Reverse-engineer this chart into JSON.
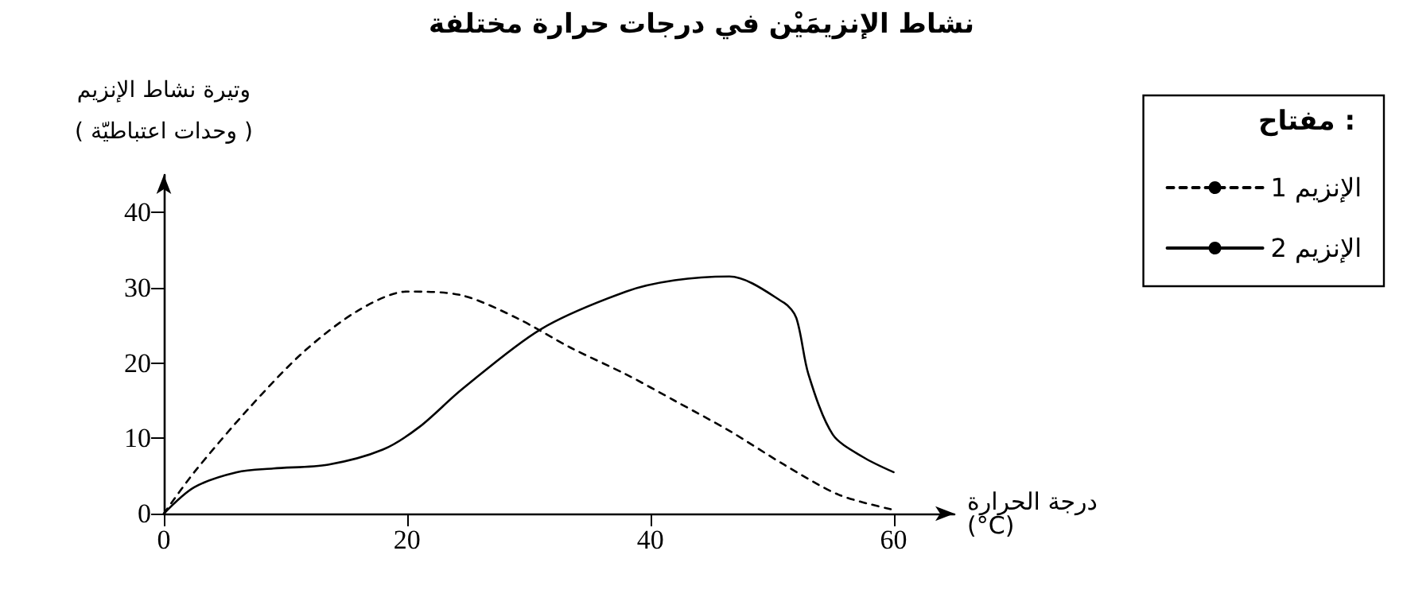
{
  "chart_data": {
    "type": "line",
    "title": "نشاط الإنزيمَيْن في درجات حرارة مختلفة",
    "xlabel": "درجة الحرارة\n(°C)",
    "ylabel": "وتيرة نشاط الإنزيم\n( وحدات اعتباطيّة )",
    "legend_title": "مفتاح :",
    "legend": "top right",
    "marker": "none",
    "grid": false,
    "xlim": [
      0,
      65
    ],
    "xticks": [
      0,
      20,
      40,
      60
    ],
    "ylim": [
      0,
      45
    ],
    "yticks": [
      0,
      10,
      20,
      30,
      40
    ],
    "series": [
      {
        "name": "الإنزيم 1",
        "color": "#000000",
        "line_style": "dashed",
        "x": [
          0,
          2.5,
          7,
          11.5,
          16,
          20,
          24.5,
          29,
          33.5,
          38,
          42,
          46.5,
          51,
          55.5,
          60
        ],
        "values": [
          0,
          5.5,
          14,
          21.5,
          27,
          29.5,
          29,
          26,
          22,
          18.5,
          15,
          11,
          6.5,
          2.5,
          0.5
        ]
      },
      {
        "name": "الإنزيم 2",
        "color": "#000000",
        "line_style": "solid",
        "x": [
          0,
          2.5,
          6,
          9,
          13.5,
          18,
          21,
          24.5,
          31,
          38,
          42,
          46.5,
          51,
          52,
          53,
          55,
          57.5,
          60
        ],
        "values": [
          0,
          3.5,
          5.5,
          6,
          6.5,
          8.5,
          11.5,
          16.5,
          24.5,
          29.5,
          31,
          31.5,
          28,
          26,
          18.5,
          10.5,
          7.5,
          5.5
        ]
      }
    ]
  }
}
